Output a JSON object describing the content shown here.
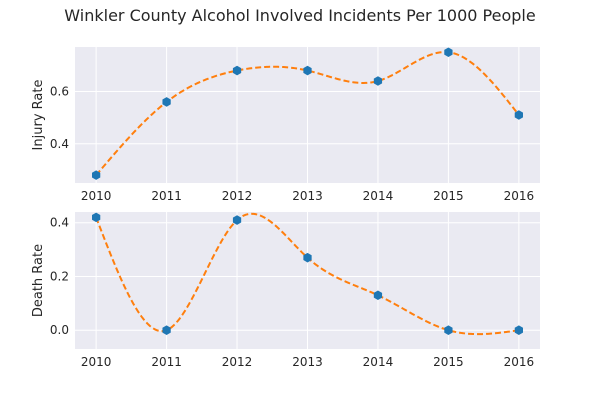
{
  "chart_data": {
    "title": "Winkler County Alcohol Involved Incidents Per 1000 People",
    "type": "line",
    "categories": [
      "2010",
      "2011",
      "2012",
      "2013",
      "2014",
      "2015",
      "2016"
    ],
    "x": [
      2010,
      2011,
      2012,
      2013,
      2014,
      2015,
      2016
    ],
    "colors": {
      "points": "#1f77b4",
      "curve": "#ff7f0e",
      "panel": "#eaeaf2"
    },
    "subplots": [
      {
        "ylabel": "Injury Rate",
        "ylim": [
          0.25,
          0.77
        ],
        "yticks": [
          "0.4",
          "0.6"
        ],
        "ytick_values": [
          0.4,
          0.6
        ],
        "values": [
          0.28,
          0.56,
          0.68,
          0.68,
          0.64,
          0.75,
          0.51
        ],
        "grid": true
      },
      {
        "ylabel": "Death Rate",
        "ylim": [
          -0.07,
          0.44
        ],
        "yticks": [
          "0.0",
          "0.2",
          "0.4"
        ],
        "ytick_values": [
          0.0,
          0.2,
          0.4
        ],
        "values": [
          0.42,
          0.0,
          0.41,
          0.27,
          0.13,
          0.0,
          0.0
        ],
        "grid": true
      }
    ]
  }
}
